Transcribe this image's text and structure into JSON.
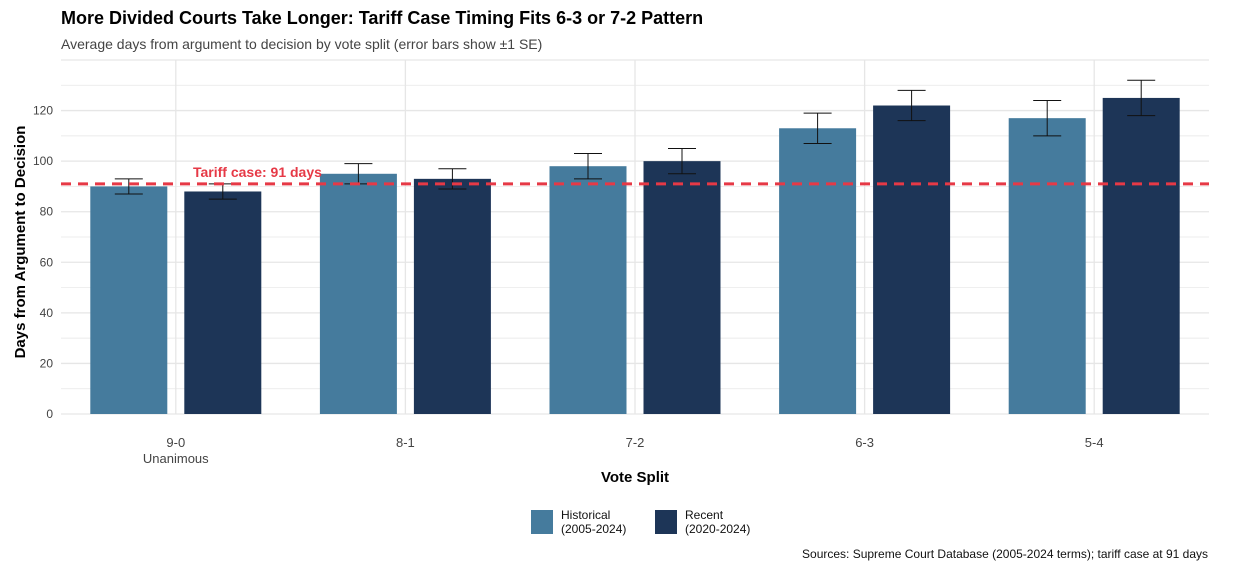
{
  "title": "More Divided Courts Take Longer: Tariff Case Timing Fits 6-3 or 7-2 Pattern",
  "subtitle": "Average days from argument to decision by vote split (error bars show ±1 SE)",
  "caption": "Sources: Supreme Court Database (2005-2024 terms); tariff case at 91 days",
  "legend": {
    "historical_line1": "Historical",
    "historical_line2": "(2005-2024)",
    "recent_line1": "Recent",
    "recent_line2": "(2020-2024)"
  },
  "colors": {
    "historical": "#457b9d",
    "recent": "#1d3557",
    "reference": "#e63946",
    "grid": "#e6e6e6"
  },
  "chart_data": {
    "type": "bar",
    "xlabel": "Vote Split",
    "ylabel": "Days from Argument to Decision",
    "categories": [
      "9-0\nUnanimous",
      "8-1",
      "7-2",
      "6-3",
      "5-4"
    ],
    "ylim": [
      0,
      140
    ],
    "yticks": [
      0,
      20,
      40,
      60,
      80,
      100,
      120
    ],
    "grid": true,
    "legend_position": "bottom",
    "series": [
      {
        "name": "Historical (2005-2024)",
        "values": [
          90,
          95,
          98,
          113,
          117
        ],
        "se": [
          3,
          4,
          5,
          6,
          7
        ]
      },
      {
        "name": "Recent (2020-2024)",
        "values": [
          88,
          93,
          100,
          122,
          125
        ],
        "se": [
          3,
          4,
          5,
          6,
          7
        ]
      }
    ],
    "reference_line": {
      "value": 91,
      "label": "Tariff case: 91 days"
    }
  }
}
